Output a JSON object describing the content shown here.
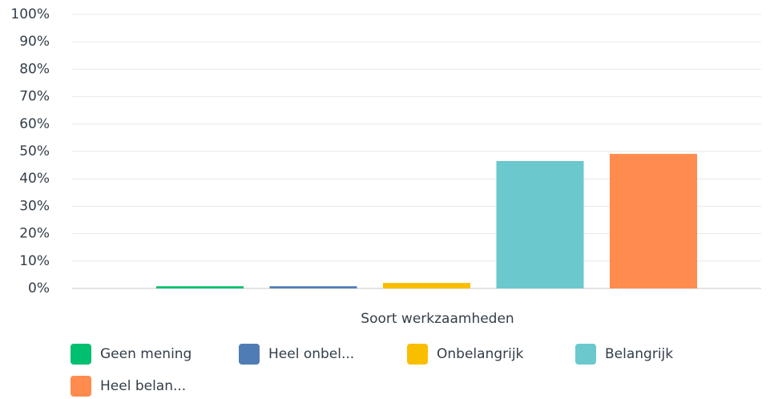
{
  "chart_data": {
    "type": "bar",
    "categories": [
      "Soort werkzaamheden"
    ],
    "series": [
      {
        "name": "Geen mening",
        "color": "#00bf6f",
        "values": [
          0.8
        ]
      },
      {
        "name": "Heel onbel...",
        "color": "#507cb6",
        "values": [
          0.8
        ]
      },
      {
        "name": "Onbelangrijk",
        "color": "#f9be00",
        "values": [
          2.0
        ]
      },
      {
        "name": "Belangrijk",
        "color": "#6bc8cd",
        "values": [
          46.5
        ]
      },
      {
        "name": "Heel belan...",
        "color": "#ff8b4f",
        "values": [
          49.1
        ]
      }
    ],
    "ylim": [
      0,
      100
    ],
    "yticks": [
      {
        "value": 0,
        "label": "0%"
      },
      {
        "value": 10,
        "label": "10%"
      },
      {
        "value": 20,
        "label": "20%"
      },
      {
        "value": 30,
        "label": "30%"
      },
      {
        "value": 40,
        "label": "40%"
      },
      {
        "value": 50,
        "label": "50%"
      },
      {
        "value": 60,
        "label": "60%"
      },
      {
        "value": 70,
        "label": "70%"
      },
      {
        "value": 80,
        "label": "80%"
      },
      {
        "value": 90,
        "label": "90%"
      },
      {
        "value": 100,
        "label": "100%"
      }
    ],
    "grid": true
  }
}
